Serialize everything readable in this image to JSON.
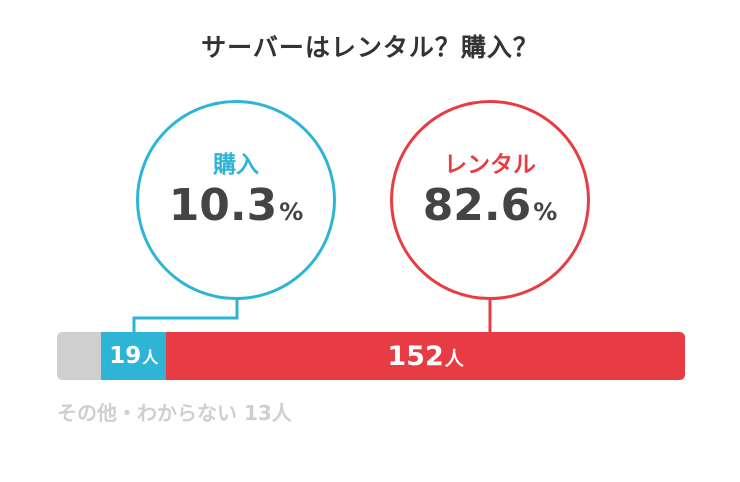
{
  "title": "サーバーはレンタル？購入？",
  "colors": {
    "purchase": "#2eb5d6",
    "rental": "#e83c44",
    "other": "#cfcfcf",
    "text": "#444444"
  },
  "purchase": {
    "label": "購入",
    "percent": "10.3",
    "unit": "%"
  },
  "rental": {
    "label": "レンタル",
    "percent": "82.6",
    "unit": "%"
  },
  "bar": {
    "purchase_count": "19",
    "rental_count": "152",
    "other_count_text": "13人",
    "count_unit": "人"
  },
  "other_label": "その他・わからない 13人",
  "chart_data": {
    "type": "bar",
    "title": "サーバーはレンタル？購入？",
    "categories": [
      "その他・わからない",
      "購入",
      "レンタル"
    ],
    "values": [
      13,
      19,
      152
    ],
    "percentages": [
      null,
      10.3,
      82.6
    ],
    "unit": "人",
    "orientation": "horizontal-stacked"
  }
}
